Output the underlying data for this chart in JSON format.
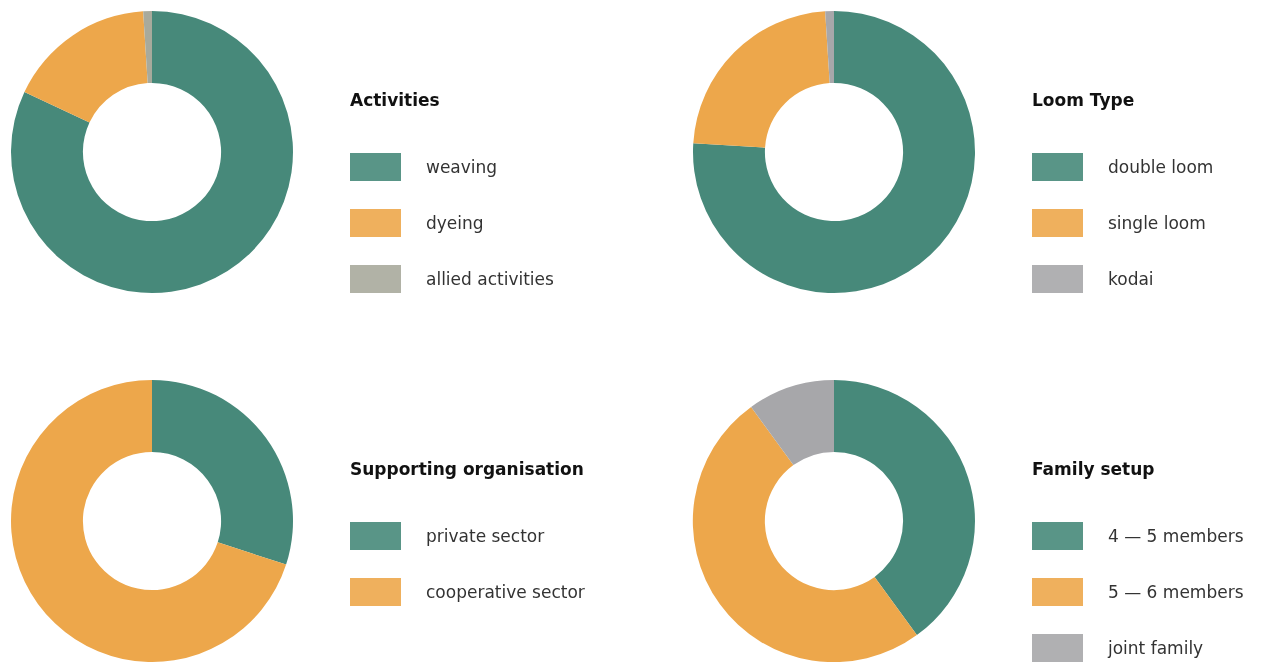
{
  "chart_data": [
    {
      "type": "donut",
      "legend_title": "Activities",
      "categories": [
        "weaving",
        "dyeing",
        "allied activities"
      ],
      "values": [
        82,
        17,
        1
      ],
      "colors": [
        "#47897a",
        "#eda74b",
        "#a8aa9c"
      ],
      "legend": "right"
    },
    {
      "type": "donut",
      "legend_title": "Loom Type",
      "categories": [
        "double loom",
        "single loom",
        "kodai"
      ],
      "values": [
        76,
        23,
        1
      ],
      "colors": [
        "#47897a",
        "#eda74b",
        "#a7a7aa"
      ],
      "legend": "right"
    },
    {
      "type": "donut",
      "legend_title": "Supporting organisation",
      "categories": [
        "private sector",
        "cooperative sector"
      ],
      "values": [
        30,
        70
      ],
      "colors": [
        "#47897a",
        "#eda74b"
      ],
      "legend": "right"
    },
    {
      "type": "donut",
      "legend_title": "Family setup",
      "categories": [
        "4 — 5 members",
        "5 — 6 members",
        "joint family"
      ],
      "values": [
        40,
        50,
        10
      ],
      "colors": [
        "#47897a",
        "#eda74b",
        "#a7a7aa"
      ],
      "legend": "right"
    }
  ]
}
